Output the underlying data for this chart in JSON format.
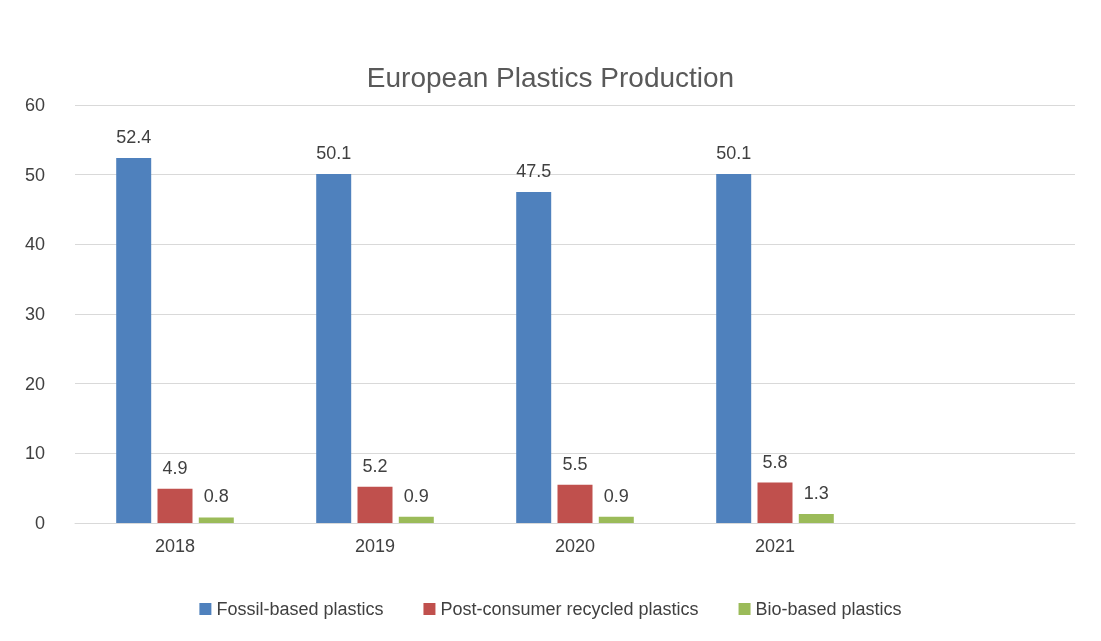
{
  "chart_data": {
    "type": "bar",
    "title": "European Plastics Production",
    "categories": [
      "2018",
      "2019",
      "2020",
      "2021",
      null
    ],
    "series": [
      {
        "name": "Fossil-based plastics",
        "color": "#4f81bd",
        "values": [
          52.4,
          50.1,
          47.5,
          50.1,
          null
        ]
      },
      {
        "name": "Post-consumer recycled plastics",
        "color": "#c0504d",
        "values": [
          4.9,
          5.2,
          5.5,
          5.8,
          null
        ]
      },
      {
        "name": "Bio-based plastics",
        "color": "#9bbb59",
        "values": [
          0.8,
          0.9,
          0.9,
          1.3,
          null
        ]
      }
    ],
    "ylim": [
      0,
      60
    ],
    "yticks": [
      0,
      10,
      20,
      30,
      40,
      50,
      60
    ],
    "grid": "y",
    "legend": "bottom",
    "data_labels": true
  }
}
